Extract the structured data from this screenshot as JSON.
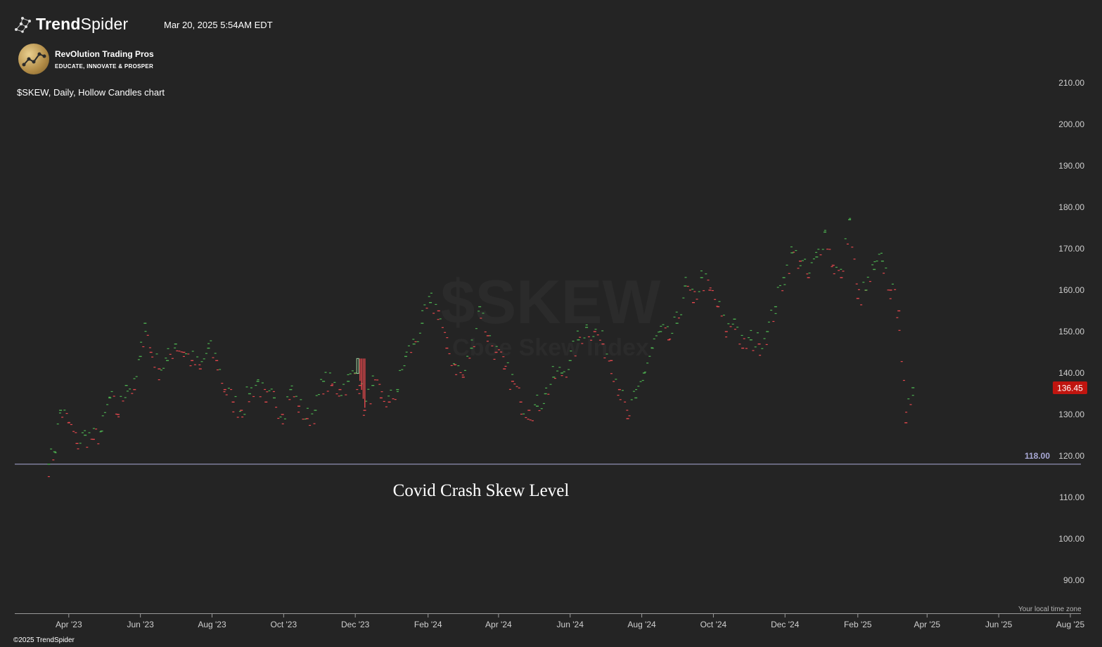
{
  "header": {
    "brand_bold": "Trend",
    "brand_light": "Spider",
    "timestamp": "Mar 20, 2025 5:54AM EDT",
    "sponsor_name": "RevOlution Trading Pros",
    "sponsor_tagline": "EDUCATE, INNOVATE & PROSPER",
    "chart_description": "$SKEW, Daily, Hollow Candles chart"
  },
  "footer": {
    "copyright": "©2025 TrendSpider",
    "timezone_note": "Your local time zone"
  },
  "icons": {
    "brand_logo": "trendspider-network-icon",
    "sponsor_logo": "revolution-trading-pros-logo"
  },
  "chart_data": {
    "type": "line",
    "symbol": "$SKEW",
    "watermark": "$SKEW",
    "watermark_sub": "Cboe Skew Index",
    "yaxis_ticks": [
      210,
      200,
      190,
      180,
      170,
      160,
      150,
      140,
      130,
      120,
      110,
      100,
      90
    ],
    "ylim": [
      84,
      220
    ],
    "xaxis_ticks": [
      "Apr '23",
      "Jun '23",
      "Aug '23",
      "Oct '23",
      "Dec '23",
      "Feb '24",
      "Apr '24",
      "Jun '24",
      "Aug '24",
      "Oct '24",
      "Dec '24",
      "Feb '25",
      "Apr '25",
      "Jun '25",
      "Aug '25"
    ],
    "horizontal_level": {
      "value": 118.0,
      "label": "118.00",
      "color": "#a9a9d6"
    },
    "annotation": "Covid Crash Skew Level",
    "last_price": {
      "value": 136.45,
      "label": "136.45",
      "color": "#c0150f"
    },
    "colors": {
      "up": "#4caf50",
      "down": "#e5484d",
      "background": "#242424"
    },
    "series": [
      {
        "x": [
          "2023-03-15",
          "2023-03-20",
          "2023-03-25",
          "2023-04-01",
          "2023-04-08",
          "2023-04-15",
          "2023-04-22",
          "2023-04-29",
          "2023-05-06",
          "2023-05-13",
          "2023-05-20",
          "2023-05-27",
          "2023-06-01",
          "2023-06-05",
          "2023-06-10",
          "2023-06-17",
          "2023-06-24",
          "2023-07-01",
          "2023-07-08",
          "2023-07-15",
          "2023-07-22",
          "2023-07-29",
          "2023-08-05",
          "2023-08-12",
          "2023-08-19",
          "2023-08-26",
          "2023-09-02",
          "2023-09-09",
          "2023-09-16",
          "2023-09-23",
          "2023-09-30",
          "2023-10-07",
          "2023-10-14",
          "2023-10-21",
          "2023-10-28",
          "2023-11-04",
          "2023-11-11",
          "2023-11-18",
          "2023-11-25",
          "2023-12-01",
          "2023-12-05",
          "2023-12-09",
          "2023-12-16",
          "2023-12-23",
          "2023-12-30",
          "2024-01-06",
          "2024-01-13",
          "2024-01-20",
          "2024-01-27",
          "2024-02-03",
          "2024-02-10",
          "2024-02-17",
          "2024-02-24",
          "2024-03-02",
          "2024-03-09",
          "2024-03-16",
          "2024-03-23",
          "2024-03-30",
          "2024-04-06",
          "2024-04-13",
          "2024-04-20",
          "2024-04-27",
          "2024-05-04",
          "2024-05-11",
          "2024-05-18",
          "2024-05-25",
          "2024-06-01",
          "2024-06-08",
          "2024-06-15",
          "2024-06-22",
          "2024-06-29",
          "2024-07-06",
          "2024-07-13",
          "2024-07-20",
          "2024-07-27",
          "2024-08-03",
          "2024-08-10",
          "2024-08-17",
          "2024-08-24",
          "2024-08-31",
          "2024-09-07",
          "2024-09-14",
          "2024-09-21",
          "2024-09-28",
          "2024-10-05",
          "2024-10-12",
          "2024-10-19",
          "2024-10-26",
          "2024-11-02",
          "2024-11-09",
          "2024-11-16",
          "2024-11-23",
          "2024-11-30",
          "2024-12-07",
          "2024-12-14",
          "2024-12-21",
          "2024-12-28",
          "2025-01-04",
          "2025-01-11",
          "2025-01-18",
          "2025-01-25",
          "2025-02-01",
          "2025-02-08",
          "2025-02-15",
          "2025-02-22",
          "2025-03-01",
          "2025-03-08",
          "2025-03-14",
          "2025-03-20"
        ],
        "values": [
          118,
          121,
          131,
          128,
          123,
          125,
          124,
          126,
          134,
          130,
          137,
          136,
          144,
          152,
          145,
          141,
          143,
          147,
          145,
          143,
          141,
          146,
          143,
          136,
          133,
          131,
          135,
          138,
          133,
          134,
          130,
          136,
          132,
          129,
          131,
          138,
          137,
          136,
          138,
          140,
          137,
          131,
          137,
          134,
          133,
          136,
          144,
          147,
          152,
          157,
          155,
          146,
          142,
          139,
          146,
          156,
          149,
          145,
          141,
          138,
          133,
          131,
          132,
          135,
          139,
          140,
          143,
          148,
          151,
          150,
          147,
          143,
          136,
          129,
          134,
          140,
          146,
          150,
          148,
          152,
          161,
          157,
          163,
          160,
          156,
          150,
          153,
          146,
          148,
          147,
          150,
          156,
          163,
          169,
          167,
          163,
          168,
          174,
          166,
          163,
          177,
          158,
          160,
          165,
          167,
          160,
          155,
          128,
          136.45
        ],
        "spike": {
          "x": "2023-12-04",
          "open": 143.5,
          "close": 131.5
        }
      }
    ]
  }
}
